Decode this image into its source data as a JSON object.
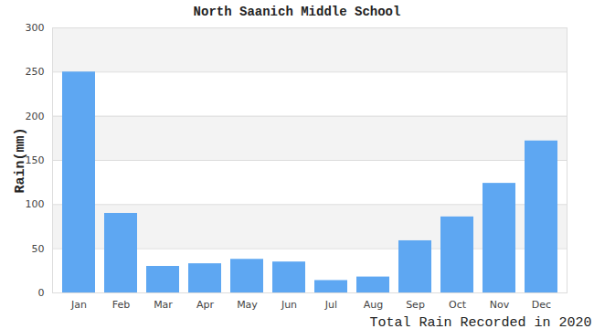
{
  "chart_data": {
    "type": "bar",
    "title": "North Saanich Middle School",
    "xlabel": "Total Rain Recorded in 2020",
    "ylabel": "Rain(mm)",
    "categories": [
      "Jan",
      "Feb",
      "Mar",
      "Apr",
      "May",
      "Jun",
      "Jul",
      "Aug",
      "Sep",
      "Oct",
      "Nov",
      "Dec"
    ],
    "values": [
      250,
      90,
      30,
      33,
      38,
      35,
      14,
      18,
      59,
      86,
      124,
      172
    ],
    "color": "#5ea7f2",
    "ylim": [
      0,
      300
    ],
    "yticks": [
      0,
      50,
      100,
      150,
      200,
      250,
      300
    ],
    "grid": true
  }
}
